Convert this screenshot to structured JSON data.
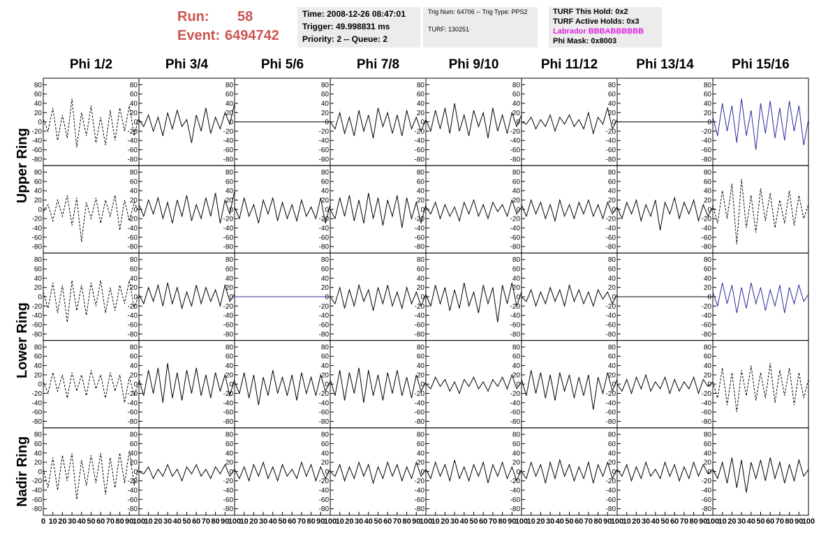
{
  "header": {
    "run_label": "Run:",
    "run": "58",
    "event_label": "Event:",
    "event": "6494742",
    "time": "Time: 2008-12-26 08:47:01",
    "trigger": "Trigger: 49.998831 ms",
    "priority": "Priority: 2 -- Queue: 2",
    "trig_num": "Trig Num: 64706 -- Trig Type: PPS2",
    "turf": "TURF: 130251",
    "turf_hold": "TURF This Hold: 0x2",
    "turf_active": "TURF Active Holds: 0x3",
    "labrador": "Labrador BBBABBBBBB",
    "phi_mask": "Phi Mask: 0x8003"
  },
  "chart_data": {
    "type": "line",
    "columns": [
      "Phi 1/2",
      "Phi 3/4",
      "Phi 5/6",
      "Phi 7/8",
      "Phi 9/10",
      "Phi 11/12",
      "Phi 13/14",
      "Phi 15/16"
    ],
    "row_labels": [
      "Upper Ring",
      null,
      "Lower Ring",
      null,
      "Nadir Ring"
    ],
    "x": [
      0,
      5,
      10,
      15,
      20,
      25,
      30,
      35,
      40,
      45,
      50,
      55,
      60,
      65,
      70,
      75,
      80,
      85,
      90,
      95,
      100
    ],
    "xlim": [
      0,
      100
    ],
    "xticks": [
      0,
      10,
      20,
      30,
      40,
      50,
      60,
      70,
      80,
      90,
      100
    ],
    "ylim": [
      -88,
      88
    ],
    "yticks": [
      -80,
      -60,
      -40,
      -20,
      0,
      20,
      40,
      60,
      80
    ],
    "panels": [
      [
        {
          "color": "#000000",
          "dashed": true,
          "values": [
            5,
            -20,
            30,
            -40,
            15,
            -35,
            50,
            -55,
            20,
            -30,
            35,
            -45,
            10,
            -50,
            25,
            -40,
            30,
            -20,
            35,
            -30,
            10
          ]
        },
        {
          "color": "#000000",
          "dashed": false,
          "values": [
            5,
            -10,
            15,
            -20,
            10,
            -30,
            20,
            -15,
            25,
            -10,
            5,
            -45,
            15,
            -20,
            30,
            -25,
            10,
            -15,
            20,
            -5,
            40
          ]
        },
        {
          "color": "#000000",
          "dashed": false,
          "values": [
            0,
            0,
            0,
            0,
            0,
            0,
            0,
            0,
            0,
            0,
            0,
            0,
            0,
            0,
            0,
            0,
            0,
            0,
            0,
            0,
            0
          ]
        },
        {
          "color": "#000000",
          "dashed": false,
          "values": [
            0,
            -15,
            20,
            -25,
            10,
            -30,
            25,
            -20,
            15,
            -35,
            30,
            -10,
            20,
            -25,
            15,
            -30,
            25,
            -15,
            10,
            -20,
            5
          ]
        },
        {
          "color": "#000000",
          "dashed": false,
          "values": [
            5,
            -20,
            25,
            -15,
            30,
            -25,
            40,
            -20,
            15,
            -30,
            25,
            -10,
            20,
            -35,
            30,
            -20,
            15,
            -25,
            20,
            -10,
            15
          ]
        },
        {
          "color": "#000000",
          "dashed": false,
          "values": [
            0,
            -5,
            10,
            -15,
            5,
            -10,
            15,
            -20,
            10,
            -5,
            15,
            -10,
            5,
            -15,
            20,
            -25,
            10,
            -5,
            30,
            -15,
            5
          ]
        },
        {
          "color": "#000000",
          "dashed": false,
          "values": [
            0,
            0,
            0,
            0,
            0,
            0,
            0,
            0,
            0,
            0,
            0,
            0,
            0,
            0,
            0,
            0,
            0,
            0,
            0,
            0,
            0
          ]
        },
        {
          "color": "#2b2b9c",
          "dashed": false,
          "values": [
            10,
            -30,
            40,
            -20,
            35,
            -45,
            50,
            -30,
            25,
            -60,
            40,
            -25,
            45,
            -35,
            30,
            -40,
            45,
            -20,
            35,
            -50,
            5
          ]
        }
      ],
      [
        {
          "color": "#000000",
          "dashed": true,
          "values": [
            -5,
            10,
            -25,
            20,
            -15,
            30,
            -35,
            25,
            -70,
            15,
            -20,
            25,
            -30,
            20,
            -15,
            30,
            -45,
            20,
            -25,
            15,
            -5
          ]
        },
        {
          "color": "#000000",
          "dashed": false,
          "values": [
            10,
            -15,
            20,
            -10,
            25,
            -20,
            15,
            -30,
            20,
            -15,
            30,
            -25,
            10,
            -20,
            25,
            -15,
            35,
            -30,
            20,
            -10,
            40
          ]
        },
        {
          "color": "#000000",
          "dashed": false,
          "values": [
            5,
            -20,
            25,
            -15,
            10,
            -30,
            20,
            -10,
            25,
            -25,
            15,
            -20,
            10,
            -25,
            20,
            -15,
            5,
            -20,
            25,
            -30,
            10
          ]
        },
        {
          "color": "#000000",
          "dashed": false,
          "values": [
            0,
            -20,
            25,
            -15,
            30,
            -25,
            20,
            -30,
            35,
            -20,
            25,
            -35,
            20,
            -15,
            30,
            -40,
            25,
            -20,
            15,
            -30,
            10
          ]
        },
        {
          "color": "#000000",
          "dashed": false,
          "values": [
            5,
            -10,
            15,
            -20,
            10,
            -15,
            5,
            -25,
            15,
            -10,
            20,
            -15,
            10,
            -20,
            15,
            -5,
            10,
            -15,
            20,
            -10,
            5
          ]
        },
        {
          "color": "#000000",
          "dashed": false,
          "values": [
            10,
            -15,
            20,
            -10,
            15,
            -20,
            10,
            -25,
            20,
            -15,
            10,
            -20,
            15,
            -10,
            20,
            -15,
            10,
            -20,
            15,
            -10,
            5
          ]
        },
        {
          "color": "#000000",
          "dashed": false,
          "values": [
            5,
            -20,
            15,
            -10,
            20,
            -25,
            10,
            -15,
            20,
            -45,
            15,
            -10,
            25,
            -20,
            15,
            -10,
            20,
            -25,
            10,
            -15,
            5
          ]
        },
        {
          "color": "#000000",
          "dashed": true,
          "values": [
            10,
            -30,
            40,
            -20,
            55,
            -75,
            65,
            -40,
            30,
            -50,
            45,
            -25,
            35,
            -40,
            20,
            -30,
            40,
            -35,
            30,
            -20,
            10
          ]
        }
      ],
      [
        {
          "color": "#000000",
          "dashed": true,
          "values": [
            10,
            -25,
            30,
            -35,
            25,
            -55,
            35,
            -30,
            25,
            -40,
            30,
            -20,
            35,
            -35,
            20,
            -30,
            25,
            -15,
            35,
            -25,
            5
          ]
        },
        {
          "color": "#000000",
          "dashed": false,
          "values": [
            5,
            -15,
            20,
            -10,
            25,
            -20,
            30,
            -15,
            20,
            -25,
            10,
            -20,
            25,
            -15,
            20,
            -10,
            15,
            -20,
            25,
            -10,
            5
          ]
        },
        {
          "color": "#2b2b9c",
          "dashed": false,
          "values": [
            0,
            0,
            0,
            0,
            0,
            0,
            0,
            0,
            0,
            0,
            0,
            0,
            0,
            0,
            0,
            0,
            0,
            0,
            0,
            0,
            0
          ]
        },
        {
          "color": "#000000",
          "dashed": false,
          "values": [
            0,
            -15,
            20,
            -25,
            15,
            -20,
            25,
            -10,
            15,
            -30,
            20,
            -15,
            25,
            -20,
            10,
            -25,
            20,
            -15,
            10,
            -20,
            5
          ]
        },
        {
          "color": "#000000",
          "dashed": false,
          "values": [
            5,
            -20,
            25,
            -15,
            20,
            -30,
            15,
            -25,
            30,
            -20,
            10,
            -35,
            25,
            -15,
            20,
            -55,
            25,
            -15,
            30,
            -20,
            10
          ]
        },
        {
          "color": "#000000",
          "dashed": false,
          "values": [
            0,
            -10,
            15,
            -20,
            10,
            -15,
            20,
            -10,
            15,
            -20,
            25,
            -10,
            15,
            -15,
            10,
            -20,
            15,
            -5,
            10,
            -15,
            5
          ]
        },
        {
          "color": "#000000",
          "dashed": false,
          "values": [
            0,
            0,
            0,
            0,
            0,
            0,
            0,
            0,
            0,
            0,
            0,
            0,
            0,
            0,
            0,
            0,
            0,
            0,
            0,
            0,
            0
          ]
        },
        {
          "color": "#2b2b9c",
          "dashed": false,
          "values": [
            10,
            -20,
            30,
            -15,
            25,
            -35,
            20,
            -25,
            30,
            -15,
            20,
            -30,
            15,
            -20,
            25,
            -35,
            20,
            -15,
            25,
            -10,
            5
          ]
        }
      ],
      [
        {
          "color": "#000000",
          "dashed": true,
          "values": [
            5,
            -20,
            25,
            -15,
            20,
            -30,
            25,
            -15,
            20,
            -25,
            30,
            -10,
            20,
            -30,
            25,
            -15,
            20,
            -40,
            15,
            -25,
            5
          ]
        },
        {
          "color": "#000000",
          "dashed": false,
          "values": [
            10,
            -25,
            30,
            -20,
            35,
            -40,
            45,
            -30,
            25,
            -35,
            30,
            -20,
            35,
            -25,
            20,
            -30,
            25,
            -15,
            20,
            -25,
            10
          ]
        },
        {
          "color": "#000000",
          "dashed": false,
          "values": [
            5,
            -20,
            25,
            -30,
            20,
            -45,
            15,
            -25,
            30,
            -20,
            15,
            -25,
            20,
            -35,
            25,
            -20,
            15,
            -25,
            20,
            -15,
            5
          ]
        },
        {
          "color": "#000000",
          "dashed": false,
          "values": [
            10,
            -25,
            30,
            -35,
            25,
            -20,
            35,
            -40,
            30,
            -25,
            20,
            -35,
            25,
            -20,
            30,
            -25,
            15,
            -30,
            20,
            -15,
            5
          ]
        },
        {
          "color": "#000000",
          "dashed": false,
          "values": [
            0,
            -10,
            15,
            -5,
            10,
            -15,
            5,
            -20,
            10,
            -5,
            15,
            -10,
            5,
            -15,
            10,
            -5,
            15,
            -10,
            20,
            -10,
            5
          ]
        },
        {
          "color": "#000000",
          "dashed": false,
          "values": [
            10,
            -25,
            30,
            -20,
            25,
            -30,
            20,
            -35,
            25,
            -15,
            20,
            -30,
            15,
            -25,
            20,
            -55,
            15,
            -20,
            25,
            -15,
            10
          ]
        },
        {
          "color": "#000000",
          "dashed": false,
          "values": [
            0,
            -15,
            10,
            -20,
            15,
            -10,
            20,
            -15,
            5,
            -10,
            15,
            -20,
            10,
            -15,
            5,
            -10,
            15,
            -20,
            10,
            -5,
            5
          ]
        },
        {
          "color": "#000000",
          "dashed": true,
          "values": [
            5,
            -30,
            35,
            -45,
            25,
            -60,
            30,
            -25,
            40,
            -35,
            25,
            -30,
            45,
            -40,
            30,
            -25,
            35,
            -45,
            25,
            -30,
            10
          ]
        }
      ],
      [
        {
          "color": "#000000",
          "dashed": true,
          "values": [
            5,
            -35,
            30,
            -40,
            35,
            -20,
            40,
            -60,
            25,
            -30,
            35,
            -25,
            40,
            -50,
            30,
            -35,
            40,
            -25,
            45,
            -30,
            10
          ]
        },
        {
          "color": "#000000",
          "dashed": false,
          "values": [
            0,
            -5,
            10,
            -15,
            5,
            -10,
            15,
            -10,
            5,
            -20,
            10,
            -5,
            15,
            -10,
            5,
            -15,
            10,
            -5,
            15,
            -10,
            5
          ]
        },
        {
          "color": "#000000",
          "dashed": false,
          "values": [
            5,
            -15,
            10,
            -20,
            15,
            -10,
            20,
            -15,
            10,
            -20,
            15,
            -10,
            5,
            -15,
            20,
            -10,
            15,
            -20,
            10,
            -15,
            5
          ]
        },
        {
          "color": "#000000",
          "dashed": false,
          "values": [
            0,
            -10,
            15,
            -20,
            10,
            -15,
            20,
            -10,
            15,
            -25,
            10,
            -15,
            20,
            -10,
            15,
            -20,
            10,
            -15,
            20,
            -10,
            5
          ]
        },
        {
          "color": "#000000",
          "dashed": false,
          "values": [
            5,
            -15,
            20,
            -10,
            15,
            -20,
            25,
            -15,
            10,
            -20,
            15,
            -10,
            20,
            -25,
            15,
            -10,
            20,
            -15,
            10,
            -20,
            5
          ]
        },
        {
          "color": "#000000",
          "dashed": false,
          "values": [
            0,
            -15,
            20,
            -10,
            15,
            -25,
            20,
            -15,
            25,
            -10,
            15,
            -20,
            10,
            -15,
            20,
            -25,
            15,
            -10,
            20,
            -15,
            5
          ]
        },
        {
          "color": "#000000",
          "dashed": false,
          "values": [
            5,
            -10,
            15,
            -20,
            10,
            -15,
            20,
            -10,
            5,
            -15,
            20,
            -10,
            15,
            -20,
            10,
            -15,
            20,
            -10,
            15,
            -5,
            5
          ]
        },
        {
          "color": "#000000",
          "dashed": false,
          "values": [
            5,
            -15,
            20,
            -25,
            30,
            -35,
            25,
            -45,
            20,
            -15,
            25,
            -20,
            30,
            -15,
            20,
            -25,
            15,
            -20,
            25,
            -10,
            5
          ]
        }
      ]
    ]
  }
}
